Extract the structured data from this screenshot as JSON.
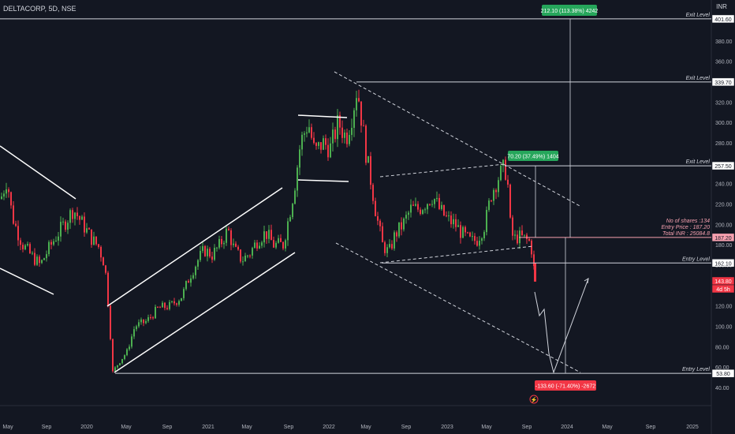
{
  "header": {
    "symbol_line": "DELTACORP, 5D, NSE",
    "currency": "INR"
  },
  "colors": {
    "background": "#131722",
    "up": "#26a69a",
    "down": "#ef5350",
    "up_candle": "#4caf50",
    "down_candle": "#f23645",
    "text": "#b2b5be",
    "white": "#ffffff"
  },
  "chart_data": {
    "type": "candlestick",
    "y_ticks": [
      "400.00",
      "380.00",
      "360.00",
      "340.00",
      "320.00",
      "300.00",
      "280.00",
      "260.00",
      "240.00",
      "220.00",
      "200.00",
      "180.00",
      "160.00",
      "140.00",
      "120.00",
      "100.00",
      "80.00",
      "60.00",
      "40.00"
    ],
    "x_ticks": [
      "May",
      "Sep",
      "2020",
      "May",
      "Sep",
      "2021",
      "May",
      "Sep",
      "2022",
      "May",
      "Sep",
      "2023",
      "May",
      "Sep",
      "2024",
      "May",
      "Sep",
      "2025"
    ],
    "price_labels": [
      {
        "value": "401.60",
        "style": "white"
      },
      {
        "value": "339.70",
        "style": "white"
      },
      {
        "value": "257.50",
        "style": "white"
      },
      {
        "value": "187.20",
        "style": "pink"
      },
      {
        "value": "162.10",
        "style": "white"
      },
      {
        "value": "143.80",
        "style": "red"
      },
      {
        "value": "4d 5h",
        "style": "red"
      },
      {
        "value": "53.80",
        "style": "white"
      }
    ],
    "levels": [
      {
        "label": "Exit Level",
        "price": 401.6
      },
      {
        "label": "Exit Level",
        "price": 339.7
      },
      {
        "label": "Exit Level",
        "price": 257.5
      },
      {
        "label": "Entry Level",
        "price": 162.1
      },
      {
        "label": "Entry Level",
        "price": 53.8
      }
    ],
    "position_info": [
      "No of shares :134",
      "Entry Price  : 187.20",
      "Total INR   : 25084.8"
    ],
    "targets": [
      {
        "text": "212.10 (113.38%) 4242",
        "style": "green"
      },
      {
        "text": "70.20 (37.49%) 1404",
        "style": "green"
      },
      {
        "text": "-133.60 (-71.40%) -2672",
        "style": "red"
      }
    ],
    "last_price": 143.8,
    "candles_note": "Weekly-style 5D candles from 2019 to Sep 2023: decline from ~250 to ~55 (Mar 2020), rally to ~335 (Apr 2022), decline to ~165, rebound to ~255, drop to ~143.8"
  }
}
